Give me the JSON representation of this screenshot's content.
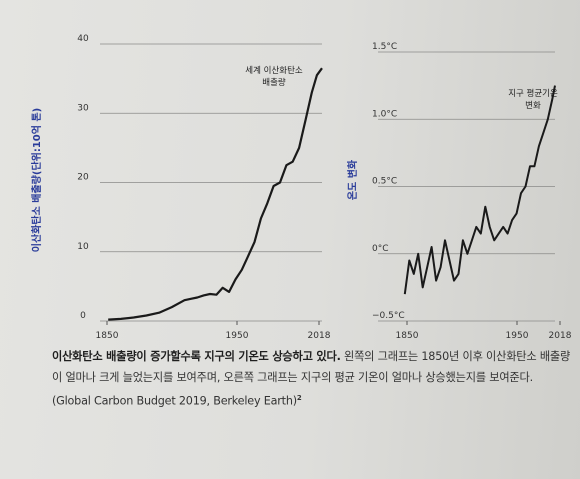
{
  "chart_data": [
    {
      "type": "line",
      "ylabel": "이산화탄소 배출량(단위:10억 톤)",
      "annotation": [
        "세계 이산화탄소",
        "배출량"
      ],
      "x_ticks": [
        "1850",
        "1950",
        "2018"
      ],
      "y_ticks": [
        "0",
        "10",
        "20",
        "30",
        "40"
      ],
      "xlim": [
        1820,
        2018
      ],
      "ylim": [
        0,
        40
      ],
      "grid": "horizontal",
      "series": [
        {
          "x": [
            1850,
            1860,
            1870,
            1880,
            1890,
            1900,
            1910,
            1915,
            1920,
            1925,
            1930,
            1935,
            1940,
            1945,
            1950,
            1955,
            1960,
            1965,
            1970,
            1975,
            1980,
            1985,
            1990,
            1995,
            2000,
            2005,
            2010,
            2014,
            2018
          ],
          "y": [
            0.2,
            0.3,
            0.5,
            0.8,
            1.2,
            2.0,
            3.0,
            3.2,
            3.4,
            3.7,
            3.9,
            3.8,
            4.8,
            4.2,
            6.0,
            7.4,
            9.4,
            11.4,
            14.8,
            17.0,
            19.5,
            20.0,
            22.5,
            23.0,
            25.0,
            29.0,
            33.0,
            35.5,
            36.5
          ]
        }
      ]
    },
    {
      "type": "line",
      "ylabel": "온도 변화",
      "annotation": [
        "지구 평균기온",
        "변화"
      ],
      "x_ticks": [
        "1850",
        "1950",
        "2018"
      ],
      "y_ticks": [
        "1.5°C",
        "1.0°C",
        "0.5°C",
        "0°C",
        "−0.5°C"
      ],
      "xlim": [
        1820,
        2018
      ],
      "ylim": [
        -0.5,
        1.5
      ],
      "grid": "horizontal",
      "series": [
        {
          "x": [
            1850,
            1855,
            1860,
            1865,
            1870,
            1875,
            1880,
            1885,
            1890,
            1895,
            1900,
            1905,
            1910,
            1915,
            1920,
            1925,
            1930,
            1935,
            1940,
            1945,
            1950,
            1955,
            1960,
            1965,
            1970,
            1975,
            1980,
            1985,
            1990,
            1995,
            2000,
            2005,
            2010,
            2015,
            2018
          ],
          "y": [
            -0.3,
            -0.05,
            -0.15,
            0.0,
            -0.25,
            -0.1,
            0.05,
            -0.2,
            -0.1,
            0.1,
            -0.05,
            -0.2,
            -0.15,
            0.1,
            0.0,
            0.1,
            0.2,
            0.15,
            0.35,
            0.2,
            0.1,
            0.15,
            0.2,
            0.15,
            0.25,
            0.3,
            0.45,
            0.5,
            0.65,
            0.65,
            0.8,
            0.9,
            1.0,
            1.15,
            1.25
          ]
        }
      ]
    }
  ],
  "caption": {
    "bold": "이산화탄소 배출량이 증가할수록 지구의 기온도 상승하고 있다.",
    "rest": " 왼쪽의 그래프는 1850년 이후 이산화탄소 배출량이 얼마나 크게 늘었는지를 보여주며, 오른쪽 그래프는 지구의 평균 기온이 얼마나 상승했는지를 보여준다. (Global Carbon Budget 2019, Berkeley Earth)",
    "footnote": "2"
  }
}
